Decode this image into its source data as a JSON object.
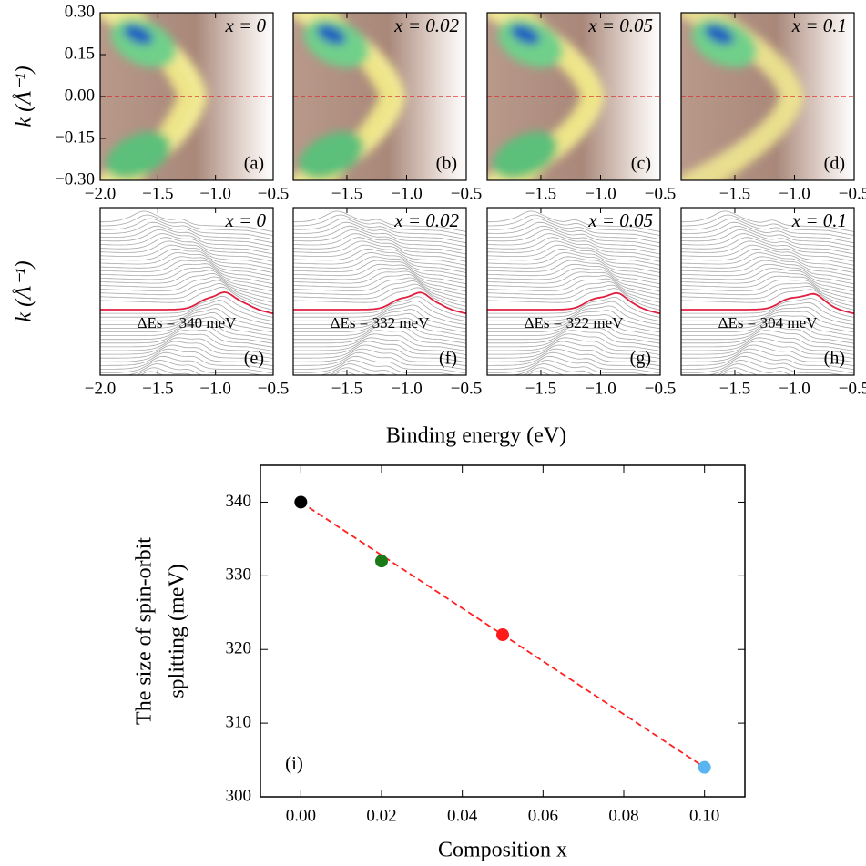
{
  "xlabel": "Binding energy (eV)",
  "chart_data": [
    {
      "type": "heatmap",
      "annotation": "x = 0",
      "label": "(a)",
      "ylabel": "k (Å⁻¹)",
      "xlim": [
        -2.0,
        -0.5
      ],
      "xticks": [
        {
          "value": -2.0,
          "label": "−2.0"
        },
        {
          "value": -1.5,
          "label": "−1.5"
        },
        {
          "value": -1.0,
          "label": "−1.0"
        },
        {
          "value": -0.5,
          "label": "−0.5"
        }
      ],
      "ylim": [
        -0.3,
        0.3
      ],
      "yticks": [
        {
          "value": 0.3,
          "label": "0.30"
        },
        {
          "value": 0.15,
          "label": "0.15"
        },
        {
          "value": 0.0,
          "label": "0.00"
        },
        {
          "value": -0.15,
          "label": "−0.15"
        },
        {
          "value": -0.3,
          "label": "−0.30"
        }
      ]
    },
    {
      "type": "heatmap",
      "annotation": "x = 0.02",
      "label": "(b)",
      "xlim": [
        -1.95,
        -0.5
      ],
      "xticks": [
        {
          "value": -1.5,
          "label": "−1.5"
        },
        {
          "value": -1.0,
          "label": "−1.0"
        },
        {
          "value": -0.5,
          "label": "−0.5"
        }
      ],
      "ylim": [
        -0.3,
        0.3
      ]
    },
    {
      "type": "heatmap",
      "annotation": "x = 0.05",
      "label": "(c)",
      "xlim": [
        -1.95,
        -0.5
      ],
      "xticks": [
        {
          "value": -1.5,
          "label": "−1.5"
        },
        {
          "value": -1.0,
          "label": "−1.0"
        },
        {
          "value": -0.5,
          "label": "−0.5"
        }
      ],
      "ylim": [
        -0.3,
        0.3
      ]
    },
    {
      "type": "heatmap",
      "annotation": "x = 0.1",
      "label": "(d)",
      "xlim": [
        -1.95,
        -0.5
      ],
      "xticks": [
        {
          "value": -1.5,
          "label": "−1.5"
        },
        {
          "value": -1.0,
          "label": "−1.0"
        },
        {
          "value": -0.5,
          "label": "−0.5"
        }
      ],
      "ylim": [
        -0.3,
        0.3
      ]
    },
    {
      "type": "edc",
      "annotation": "x = 0",
      "splitting": "ΔEs = 340 meV",
      "label": "(e)",
      "ylabel": "k (Å⁻¹)",
      "xlim": [
        -2.0,
        -0.5
      ],
      "xticks": [
        {
          "value": -2.0,
          "label": "−2.0"
        },
        {
          "value": -1.5,
          "label": "−1.5"
        },
        {
          "value": -1.0,
          "label": "−1.0"
        },
        {
          "value": -0.5,
          "label": "−0.5"
        }
      ]
    },
    {
      "type": "edc",
      "annotation": "x = 0.02",
      "splitting": "ΔEs = 332 meV",
      "label": "(f)",
      "xlim": [
        -1.95,
        -0.5
      ],
      "xticks": [
        {
          "value": -1.5,
          "label": "−1.5"
        },
        {
          "value": -1.0,
          "label": "−1.0"
        },
        {
          "value": -0.5,
          "label": "−0.5"
        }
      ]
    },
    {
      "type": "edc",
      "annotation": "x = 0.05",
      "splitting": "ΔEs = 322 meV",
      "label": "(g)",
      "xlim": [
        -1.95,
        -0.5
      ],
      "xticks": [
        {
          "value": -1.5,
          "label": "−1.5"
        },
        {
          "value": -1.0,
          "label": "−1.0"
        },
        {
          "value": -0.5,
          "label": "−0.5"
        }
      ]
    },
    {
      "type": "edc",
      "annotation": "x = 0.1",
      "splitting": "ΔEs = 304 meV",
      "label": "(h)",
      "xlim": [
        -1.95,
        -0.5
      ],
      "xticks": [
        {
          "value": -1.5,
          "label": "−1.5"
        },
        {
          "value": -1.0,
          "label": "−1.0"
        },
        {
          "value": -0.5,
          "label": "−0.5"
        }
      ]
    },
    {
      "type": "scatter",
      "xlabel": "Composition x",
      "ylabel": [
        "The size of spin-orbit",
        "splitting (meV)"
      ],
      "annotation": "(i)",
      "x": [
        0,
        0.02,
        0.05,
        0.1
      ],
      "values": [
        340,
        332,
        322,
        304
      ],
      "colors": [
        "#000000",
        "#1a7a1a",
        "#ff1a1a",
        "#5ab4f0"
      ],
      "fit": {
        "x": [
          0,
          0.1
        ],
        "values": [
          340,
          304
        ],
        "color": "#ff2020"
      },
      "xlim": [
        -0.01,
        0.11
      ],
      "xticks": [
        {
          "value": 0,
          "label": "0.00"
        },
        {
          "value": 0.02,
          "label": "0.02"
        },
        {
          "value": 0.04,
          "label": "0.04"
        },
        {
          "value": 0.06,
          "label": "0.06"
        },
        {
          "value": 0.08,
          "label": "0.08"
        },
        {
          "value": 0.1,
          "label": "0.10"
        }
      ],
      "ylim": [
        300,
        345
      ],
      "yticks": [
        300,
        310,
        320,
        330,
        340
      ]
    }
  ]
}
